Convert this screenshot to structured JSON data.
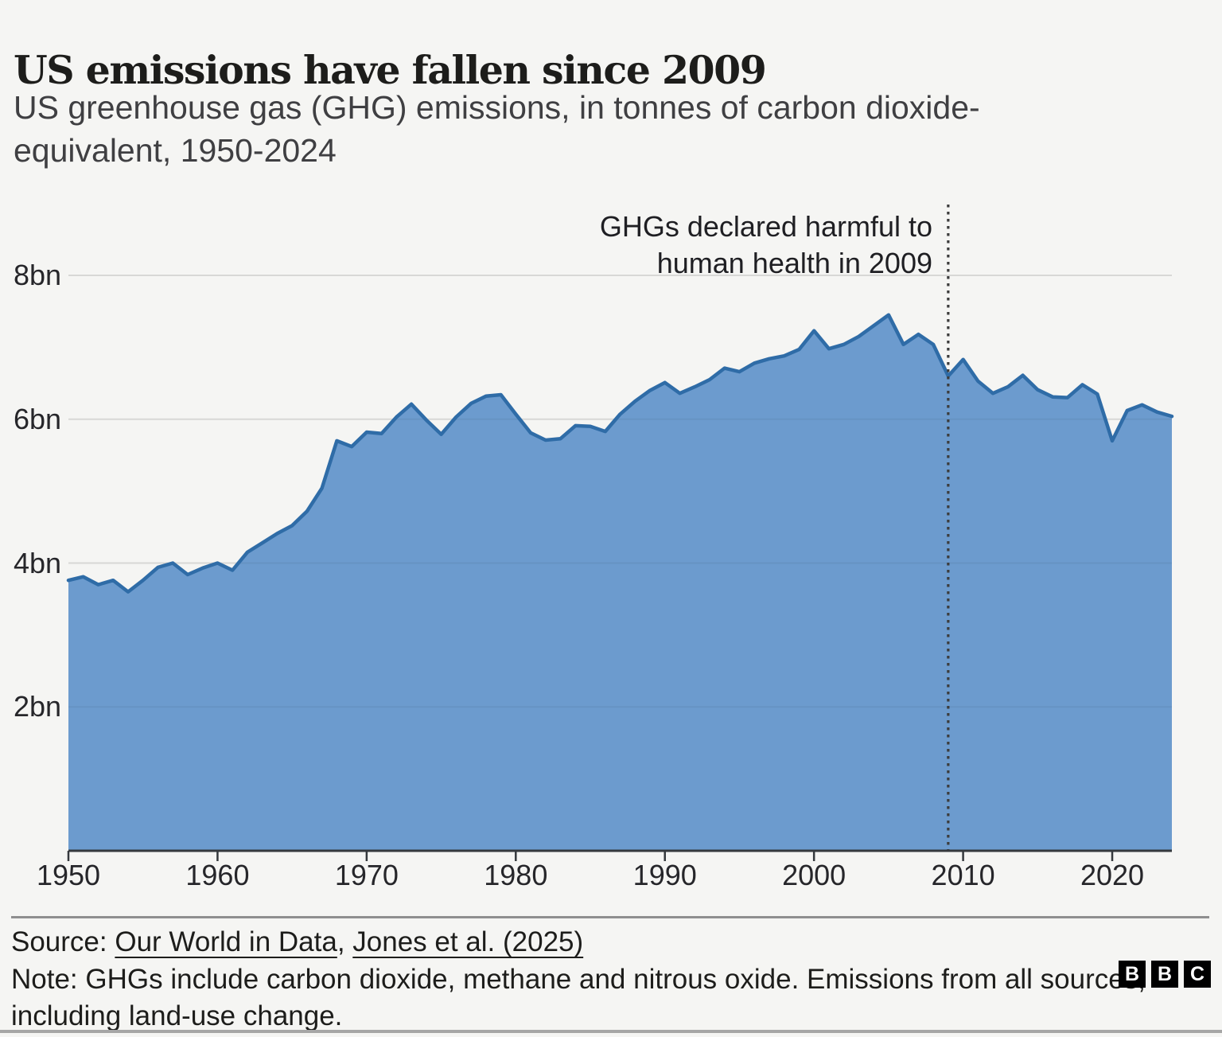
{
  "header": {
    "title": "US emissions have fallen since 2009",
    "subtitle_lines": [
      "US greenhouse gas (GHG) emissions, in tonnes of carbon dioxide-",
      "equivalent, 1950-2024"
    ]
  },
  "chart_data": {
    "type": "area",
    "title": "US emissions have fallen since 2009",
    "subtitle": "US greenhouse gas (GHG) emissions, in tonnes of carbon dioxide-equivalent, 1950-2024",
    "xlabel": "",
    "ylabel": "tonnes of carbon dioxide-equivalent",
    "ylim": [
      0,
      8
    ],
    "grid": "horizontal-only",
    "legend": "none",
    "x": [
      1950,
      1951,
      1952,
      1953,
      1954,
      1955,
      1956,
      1957,
      1958,
      1959,
      1960,
      1961,
      1962,
      1963,
      1964,
      1965,
      1966,
      1967,
      1968,
      1969,
      1970,
      1971,
      1972,
      1973,
      1974,
      1975,
      1976,
      1977,
      1978,
      1979,
      1980,
      1981,
      1982,
      1983,
      1984,
      1985,
      1986,
      1987,
      1988,
      1989,
      1990,
      1991,
      1992,
      1993,
      1994,
      1995,
      1996,
      1997,
      1998,
      1999,
      2000,
      2001,
      2002,
      2003,
      2004,
      2005,
      2006,
      2007,
      2008,
      2009,
      2010,
      2011,
      2012,
      2013,
      2014,
      2015,
      2016,
      2017,
      2018,
      2019,
      2020,
      2021,
      2022,
      2023,
      2024
    ],
    "values": [
      3.76,
      3.81,
      3.7,
      3.76,
      3.6,
      3.76,
      3.94,
      4.0,
      3.84,
      3.93,
      4.0,
      3.9,
      4.15,
      4.28,
      4.41,
      4.52,
      4.72,
      5.04,
      5.7,
      5.62,
      5.82,
      5.8,
      6.03,
      6.21,
      5.99,
      5.79,
      6.03,
      6.22,
      6.32,
      6.34,
      6.07,
      5.81,
      5.71,
      5.73,
      5.91,
      5.9,
      5.83,
      6.07,
      6.25,
      6.4,
      6.51,
      6.36,
      6.45,
      6.55,
      6.71,
      6.66,
      6.78,
      6.84,
      6.88,
      6.97,
      7.23,
      6.98,
      7.04,
      7.15,
      7.3,
      7.45,
      7.04,
      7.18,
      7.04,
      6.6,
      6.83,
      6.53,
      6.36,
      6.45,
      6.61,
      6.41,
      6.31,
      6.3,
      6.48,
      6.35,
      5.7,
      6.12,
      6.2,
      6.1,
      6.04
    ],
    "value_unit": "bn tonnes CO2-equivalent",
    "y_ticks": [
      {
        "value": 8,
        "label": "8bn"
      },
      {
        "value": 6,
        "label": "6bn"
      },
      {
        "value": 4,
        "label": "4bn"
      },
      {
        "value": 2,
        "label": "2bn"
      }
    ],
    "x_ticks": [
      {
        "value": 1950,
        "label": "1950"
      },
      {
        "value": 1960,
        "label": "1960"
      },
      {
        "value": 1970,
        "label": "1970"
      },
      {
        "value": 1980,
        "label": "1980"
      },
      {
        "value": 1990,
        "label": "1990"
      },
      {
        "value": 2000,
        "label": "2000"
      },
      {
        "value": 2010,
        "label": "2010"
      },
      {
        "value": 2020,
        "label": "2020"
      }
    ],
    "annotation": {
      "year": 2009,
      "lines": [
        "GHGs declared harmful to",
        "human health in 2009"
      ],
      "line_style": "dotted-vertical"
    },
    "colors": {
      "area_fill": "#6C9BCE",
      "area_stroke": "#2F6CA7",
      "gridline": "#E4E4E2",
      "axis": "#35393D",
      "dotted_line": "#3C3C3C",
      "background": "#F5F5F3",
      "text": "#26262A"
    }
  },
  "footer": {
    "source_prefix": "Source: ",
    "source_links": [
      {
        "label": "Our World in Data"
      },
      {
        "label": "Jones et al. (2025)"
      }
    ],
    "source_separator": ", ",
    "note_lines": [
      "Note: GHGs include carbon dioxide, methane and nitrous oxide. Emissions from all sources,",
      "including land-use change."
    ],
    "logo_letters": [
      "B",
      "B",
      "C"
    ]
  }
}
